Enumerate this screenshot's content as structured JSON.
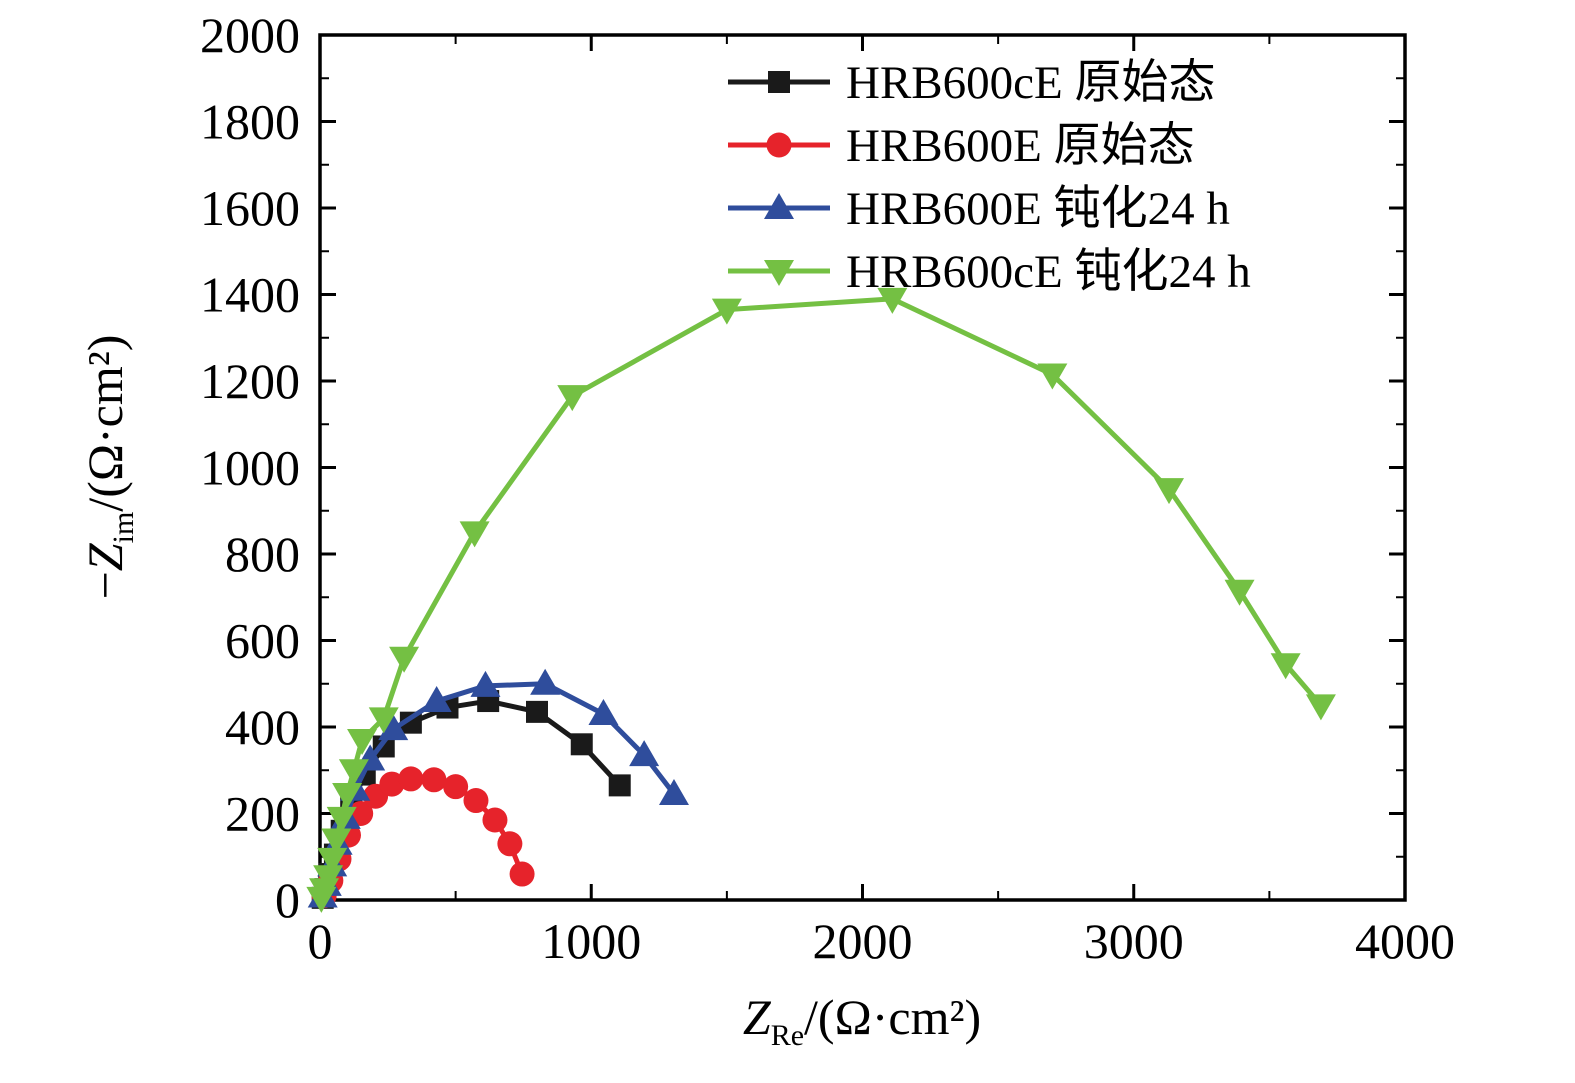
{
  "chart_data": {
    "type": "line",
    "title": "",
    "xlabel": {
      "var": "Z",
      "sub": "Re",
      "unit": "/(Ω·cm²)"
    },
    "ylabel": {
      "minus": "−",
      "var": "Z",
      "sub": "im",
      "unit": "/(Ω·cm²)"
    },
    "xlim": [
      0,
      4000
    ],
    "ylim": [
      0,
      2000
    ],
    "x_ticks": [
      0,
      1000,
      2000,
      3000,
      4000
    ],
    "y_ticks": [
      0,
      200,
      400,
      600,
      800,
      1000,
      1200,
      1400,
      1600,
      1800,
      2000
    ],
    "x_minor_step": 500,
    "y_minor_step": 100,
    "grid": false,
    "legend_position": "top-right-inside",
    "series": [
      {
        "name": "HRB600cE 原始态",
        "color": "#1a1a1a",
        "marker": "square",
        "points": [
          [
            10,
            5
          ],
          [
            20,
            25
          ],
          [
            35,
            60
          ],
          [
            55,
            105
          ],
          [
            80,
            160
          ],
          [
            115,
            220
          ],
          [
            165,
            290
          ],
          [
            235,
            355
          ],
          [
            335,
            410
          ],
          [
            470,
            445
          ],
          [
            620,
            460
          ],
          [
            800,
            435
          ],
          [
            965,
            360
          ],
          [
            1105,
            265
          ]
        ]
      },
      {
        "name": "HRB600E 原始态",
        "color": "#e6232b",
        "marker": "circle",
        "points": [
          [
            15,
            10
          ],
          [
            40,
            45
          ],
          [
            70,
            95
          ],
          [
            105,
            150
          ],
          [
            150,
            200
          ],
          [
            205,
            240
          ],
          [
            265,
            268
          ],
          [
            335,
            280
          ],
          [
            420,
            278
          ],
          [
            500,
            262
          ],
          [
            575,
            230
          ],
          [
            645,
            185
          ],
          [
            700,
            130
          ],
          [
            745,
            60
          ]
        ]
      },
      {
        "name": "HRB600E 钝化24 h",
        "color": "#2f4d9c",
        "marker": "triangle-up",
        "points": [
          [
            10,
            8
          ],
          [
            25,
            35
          ],
          [
            45,
            80
          ],
          [
            65,
            130
          ],
          [
            95,
            190
          ],
          [
            130,
            255
          ],
          [
            185,
            325
          ],
          [
            270,
            395
          ],
          [
            430,
            460
          ],
          [
            610,
            495
          ],
          [
            830,
            500
          ],
          [
            1045,
            430
          ],
          [
            1195,
            335
          ],
          [
            1305,
            245
          ]
        ]
      },
      {
        "name": "HRB600cE 钝化24 h",
        "color": "#74c043",
        "marker": "triangle-down",
        "points": [
          [
            5,
            5
          ],
          [
            15,
            25
          ],
          [
            30,
            55
          ],
          [
            45,
            95
          ],
          [
            60,
            140
          ],
          [
            80,
            190
          ],
          [
            100,
            245
          ],
          [
            125,
            300
          ],
          [
            155,
            370
          ],
          [
            235,
            420
          ],
          [
            310,
            560
          ],
          [
            570,
            850
          ],
          [
            930,
            1165
          ],
          [
            1500,
            1365
          ],
          [
            2110,
            1390
          ],
          [
            2700,
            1215
          ],
          [
            3130,
            950
          ],
          [
            3390,
            715
          ],
          [
            3560,
            545
          ],
          [
            3690,
            450
          ]
        ]
      }
    ]
  }
}
